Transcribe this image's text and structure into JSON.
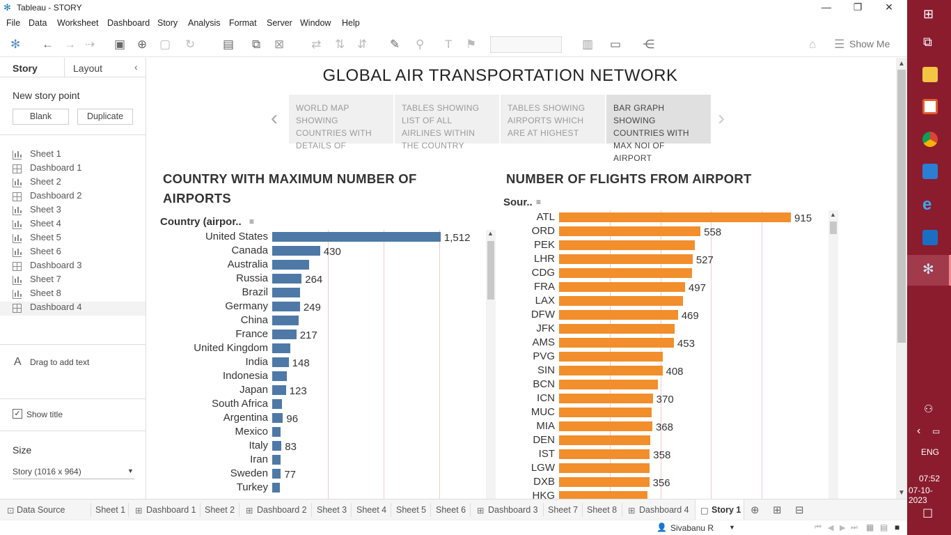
{
  "window": {
    "title": "Tableau - STORY"
  },
  "menu": [
    "File",
    "Data",
    "Worksheet",
    "Dashboard",
    "Story",
    "Analysis",
    "Format",
    "Server",
    "Window",
    "Help"
  ],
  "toolbar": {
    "show_me": "Show Me"
  },
  "sidebar": {
    "tab_story": "Story",
    "tab_layout": "Layout",
    "new_story_point": "New story point",
    "blank": "Blank",
    "duplicate": "Duplicate",
    "items": [
      {
        "label": "Sheet 1",
        "type": "sheet"
      },
      {
        "label": "Dashboard 1",
        "type": "dashboard"
      },
      {
        "label": "Sheet 2",
        "type": "sheet"
      },
      {
        "label": "Dashboard 2",
        "type": "dashboard"
      },
      {
        "label": "Sheet 3",
        "type": "sheet"
      },
      {
        "label": "Sheet 4",
        "type": "sheet"
      },
      {
        "label": "Sheet 5",
        "type": "sheet"
      },
      {
        "label": "Sheet 6",
        "type": "sheet"
      },
      {
        "label": "Dashboard 3",
        "type": "dashboard"
      },
      {
        "label": "Sheet 7",
        "type": "sheet"
      },
      {
        "label": "Sheet 8",
        "type": "sheet"
      },
      {
        "label": "Dashboard 4",
        "type": "dashboard"
      }
    ],
    "drag_text": "Drag to add text",
    "show_title": "Show title",
    "size_label": "Size",
    "size_value": "Story (1016 x 964)"
  },
  "story": {
    "title": "GLOBAL AIR TRANSPORTATION NETWORK",
    "points": [
      "WORLD MAP SHOWING COUNTRIES WITH DETAILS OF",
      "TABLES SHOWING LIST OF ALL AIRLINES WITHIN THE COUNTRY",
      "TABLES SHOWING AIRPORTS WHICH ARE AT HIGHEST",
      "BAR GRAPH SHOWING COUNTRIES WITH MAX NOI OF AIRPORT"
    ]
  },
  "chart_data": [
    {
      "type": "bar",
      "orientation": "horizontal",
      "title": "COUNTRY WITH MAXIMUM NUMBER OF AIRPORTS",
      "ylabel": "Country (airpor..",
      "color": "#4e79a7",
      "categories": [
        "United States",
        "Canada",
        "Australia",
        "Russia",
        "Brazil",
        "Germany",
        "China",
        "France",
        "United Kingdom",
        "India",
        "Indonesia",
        "Japan",
        "South Africa",
        "Argentina",
        "Mexico",
        "Italy",
        "Iran",
        "Sweden",
        "Turkey"
      ],
      "values": [
        1512,
        430,
        330,
        264,
        250,
        249,
        240,
        217,
        160,
        148,
        130,
        123,
        90,
        96,
        75,
        83,
        75,
        77,
        70
      ],
      "labels": [
        "1,512",
        "430",
        "",
        "264",
        "",
        "249",
        "",
        "217",
        "",
        "148",
        "",
        "123",
        "",
        "96",
        "",
        "83",
        "",
        "77",
        ""
      ],
      "xlim": [
        0,
        2000
      ]
    },
    {
      "type": "bar",
      "orientation": "horizontal",
      "title": "NUMBER OF FLIGHTS FROM AIRPORT",
      "ylabel": "Sour..",
      "color": "#f28e2b",
      "categories": [
        "ATL",
        "ORD",
        "PEK",
        "LHR",
        "CDG",
        "FRA",
        "LAX",
        "DFW",
        "JFK",
        "AMS",
        "PVG",
        "SIN",
        "BCN",
        "ICN",
        "MUC",
        "MIA",
        "DEN",
        "IST",
        "LGW",
        "DXB",
        "HKG"
      ],
      "values": [
        915,
        558,
        535,
        527,
        524,
        497,
        490,
        469,
        455,
        453,
        410,
        408,
        390,
        370,
        366,
        368,
        360,
        358,
        357,
        356,
        350
      ],
      "labels": [
        "915",
        "558",
        "",
        "527",
        "",
        "497",
        "",
        "469",
        "",
        "453",
        "",
        "408",
        "",
        "370",
        "",
        "368",
        "",
        "358",
        "",
        "356",
        ""
      ],
      "xlim": [
        0,
        1000
      ]
    }
  ],
  "bottom_tabs": {
    "data_source": "Data Source",
    "tabs": [
      "Sheet 1",
      "Dashboard 1",
      "Sheet 2",
      "Dashboard 2",
      "Sheet 3",
      "Sheet 4",
      "Sheet 5",
      "Sheet 6",
      "Dashboard 3",
      "Sheet 7",
      "Sheet 8",
      "Dashboard 4",
      "Story 1"
    ]
  },
  "status": {
    "user": "Sivabanu R"
  },
  "taskbar": {
    "time": "07:52",
    "date": "07-10-2023",
    "lang": "ENG"
  }
}
